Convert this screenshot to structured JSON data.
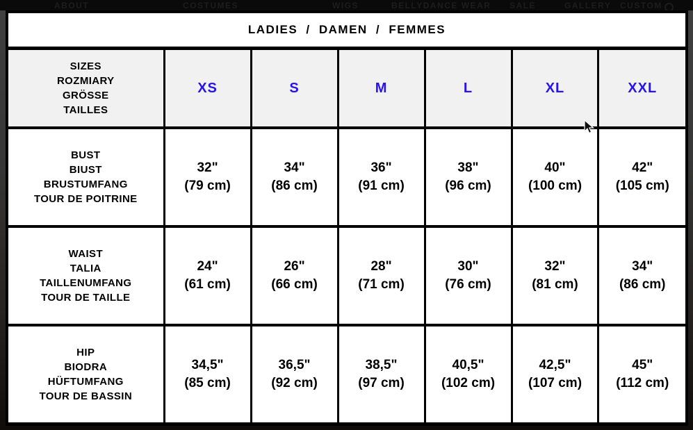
{
  "nav": {
    "items": [
      {
        "label": "ABOUT"
      },
      {
        "label": "COSTUMES"
      },
      {
        "label": "WIGS"
      },
      {
        "label": "BELLYDANCE WEAR"
      },
      {
        "label": "SALE"
      },
      {
        "label": "GALLERY"
      },
      {
        "label": "CUSTOM"
      }
    ],
    "account_icon": "account-icon"
  },
  "table": {
    "title": "LADIES  /  DAMEN  /  FEMMES",
    "header": {
      "label_lines": [
        "SIZES",
        "ROZMIARY",
        "GRÖSSE",
        "TAILLES"
      ],
      "sizes": [
        "XS",
        "S",
        "M",
        "L",
        "XL",
        "XXL"
      ]
    },
    "rows": [
      {
        "label_lines": [
          "BUST",
          "BIUST",
          "BRUSTUMFANG",
          "TOUR DE POITRINE"
        ],
        "values": [
          {
            "in": "32\"",
            "cm": "(79 cm)"
          },
          {
            "in": "34\"",
            "cm": "(86 cm)"
          },
          {
            "in": "36\"",
            "cm": "(91 cm)"
          },
          {
            "in": "38\"",
            "cm": "(96 cm)"
          },
          {
            "in": "40\"",
            "cm": "(100 cm)"
          },
          {
            "in": "42\"",
            "cm": "(105 cm)"
          }
        ]
      },
      {
        "label_lines": [
          "WAIST",
          "TALIA",
          "TAILLENUMFANG",
          "TOUR DE TAILLE"
        ],
        "values": [
          {
            "in": "24\"",
            "cm": "(61 cm)"
          },
          {
            "in": "26\"",
            "cm": "(66 cm)"
          },
          {
            "in": "28\"",
            "cm": "(71 cm)"
          },
          {
            "in": "30\"",
            "cm": "(76 cm)"
          },
          {
            "in": "32\"",
            "cm": "(81 cm)"
          },
          {
            "in": "34\"",
            "cm": "(86 cm)"
          }
        ]
      },
      {
        "label_lines": [
          "HIP",
          "BIODRA",
          "HÜFTUMFANG",
          "TOUR DE BASSIN"
        ],
        "values": [
          {
            "in": "34,5\"",
            "cm": "(85 cm)"
          },
          {
            "in": "36,5\"",
            "cm": "(92 cm)"
          },
          {
            "in": "38,5\"",
            "cm": "(97 cm)"
          },
          {
            "in": "40,5\"",
            "cm": "(102 cm)"
          },
          {
            "in": "42,5\"",
            "cm": "(107 cm)"
          },
          {
            "in": "45\"",
            "cm": "(112 cm)"
          }
        ]
      }
    ]
  },
  "colors": {
    "size_label_blue": "#2612f2",
    "header_row_bg": "#f1f1f1",
    "table_border": "#000000",
    "page_background": "#0a0a0a"
  }
}
